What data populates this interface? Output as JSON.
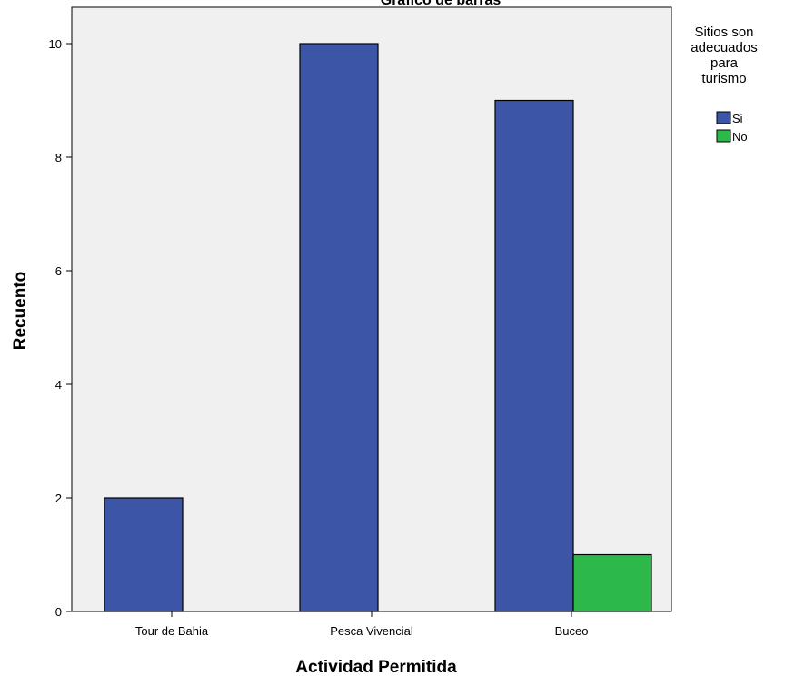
{
  "chart_data": {
    "type": "bar",
    "title": "Gráfico de barras",
    "xlabel": "Actividad Permitida",
    "ylabel": "Recuento",
    "categories": [
      "Tour de Bahia",
      "Pesca Vivencial",
      "Buceo"
    ],
    "ylim": [
      0,
      10.5
    ],
    "yticks": [
      0,
      2,
      4,
      6,
      8,
      10
    ],
    "grid": false,
    "legend": {
      "title_lines": [
        "Sitios son",
        "adecuados",
        "para",
        "turismo"
      ],
      "placement": "right"
    },
    "series": [
      {
        "name": "Si",
        "color": "#3d55a6",
        "values": [
          2,
          10,
          9
        ]
      },
      {
        "name": "No",
        "color": "#2db84a",
        "values": [
          0,
          0,
          1
        ]
      }
    ],
    "plot_background": "#f0f0f0"
  }
}
